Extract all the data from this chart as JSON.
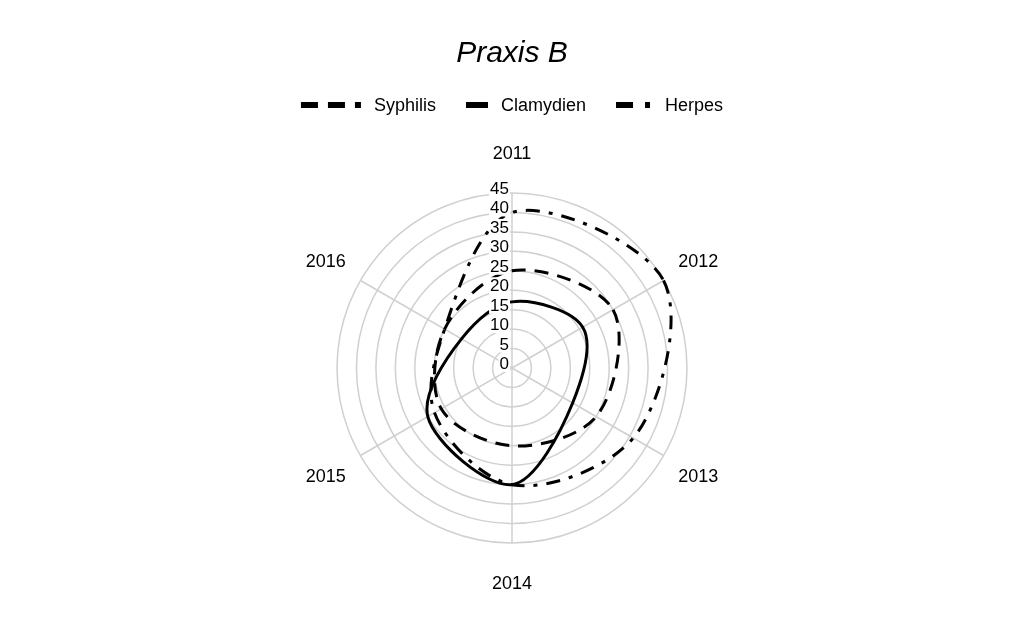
{
  "chart_data": {
    "type": "radar",
    "title": "Praxis B",
    "categories": [
      "2011",
      "2012",
      "2013",
      "2014",
      "2015",
      "2016"
    ],
    "series": [
      {
        "name": "Syphilis",
        "color": "#000000",
        "line_style": "dashed",
        "values": [
          25,
          30,
          25,
          20,
          21,
          20
        ]
      },
      {
        "name": "Clamydien",
        "color": "#000000",
        "line_style": "solid",
        "values": [
          17,
          21,
          18,
          30,
          25,
          15
        ]
      },
      {
        "name": "Herpes",
        "color": "#000000",
        "line_style": "dashdot",
        "values": [
          40,
          45,
          36,
          30,
          23,
          20
        ]
      }
    ],
    "ylim": [
      0,
      45
    ],
    "yticks": [
      0,
      5,
      10,
      15,
      20,
      25,
      30,
      35,
      40,
      45
    ],
    "grid": true,
    "legend": "top",
    "marker": "none"
  }
}
